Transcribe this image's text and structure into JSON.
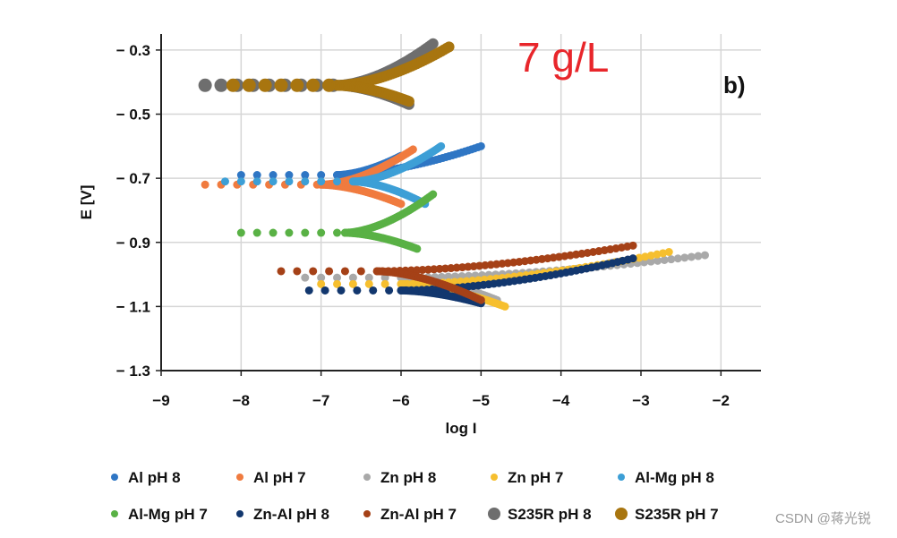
{
  "chart_data": {
    "type": "scatter",
    "title": "",
    "annotation": "7 g/L",
    "panel_label": "b)",
    "xlabel": "log I",
    "ylabel": "E [V]",
    "xlim": [
      -9,
      -1.5
    ],
    "ylim": [
      -1.3,
      -0.25
    ],
    "x_ticks": [
      -9,
      -8,
      -7,
      -6,
      -5,
      -4,
      -3,
      -2
    ],
    "x_tick_labels": [
      "−9",
      "−8",
      "−7",
      "−6",
      "−5",
      "−4",
      "−3",
      "−2"
    ],
    "y_ticks": [
      -0.3,
      -0.5,
      -0.7,
      -0.9,
      -1.1,
      -1.3
    ],
    "y_tick_labels": [
      "− 0.3",
      "− 0.5",
      "− 0.7",
      "− 0.9",
      "− 1.1",
      "− 1.3"
    ],
    "grid": true,
    "legend_position": "bottom",
    "series": [
      {
        "name": "Al pH 8",
        "color": "#2f76c4",
        "corrosion": {
          "x": -8.0,
          "y": -0.69
        },
        "anodic": {
          "x": -5.0,
          "y": -0.6
        },
        "cathodic": {
          "x": -6.0,
          "y": -0.63
        },
        "wing_tip": -6.8
      },
      {
        "name": "Al pH 7",
        "color": "#f07b3f",
        "corrosion": {
          "x": -8.45,
          "y": -0.72
        },
        "anodic": {
          "x": -5.85,
          "y": -0.61
        },
        "cathodic": {
          "x": -6.0,
          "y": -0.78
        },
        "wing_tip": -7.0
      },
      {
        "name": "Zn pH 8",
        "color": "#a9a9a9",
        "corrosion": {
          "x": -7.2,
          "y": -1.01
        },
        "anodic": {
          "x": -2.2,
          "y": -0.94
        },
        "cathodic": {
          "x": -4.8,
          "y": -1.08
        },
        "wing_tip": -6.0
      },
      {
        "name": "Zn pH 7",
        "color": "#f6bf2f",
        "corrosion": {
          "x": -7.0,
          "y": -1.03
        },
        "anodic": {
          "x": -2.65,
          "y": -0.93
        },
        "cathodic": {
          "x": -4.7,
          "y": -1.1
        },
        "wing_tip": -6.0
      },
      {
        "name": "Al-Mg pH 8",
        "color": "#3d9fd6",
        "corrosion": {
          "x": -8.2,
          "y": -0.71
        },
        "anodic": {
          "x": -5.5,
          "y": -0.6
        },
        "cathodic": {
          "x": -5.7,
          "y": -0.78
        },
        "wing_tip": -6.6
      },
      {
        "name": "Al-Mg pH 7",
        "color": "#59b145",
        "corrosion": {
          "x": -8.0,
          "y": -0.87
        },
        "anodic": {
          "x": -5.6,
          "y": -0.75
        },
        "cathodic": {
          "x": -5.8,
          "y": -0.92
        },
        "wing_tip": -6.7
      },
      {
        "name": "Zn-Al pH 8",
        "color": "#12376e",
        "corrosion": {
          "x": -7.15,
          "y": -1.05
        },
        "anodic": {
          "x": -3.1,
          "y": -0.95
        },
        "cathodic": {
          "x": -5.0,
          "y": -1.09
        },
        "wing_tip": -6.0
      },
      {
        "name": "Zn-Al pH 7",
        "color": "#a54117",
        "corrosion": {
          "x": -7.5,
          "y": -0.99
        },
        "anodic": {
          "x": -3.1,
          "y": -0.91
        },
        "cathodic": {
          "x": -5.0,
          "y": -1.08
        },
        "wing_tip": -6.3
      },
      {
        "name": "S235R pH 8",
        "color": "#6e6e6e",
        "corrosion": {
          "x": -8.45,
          "y": -0.41
        },
        "anodic": {
          "x": -5.6,
          "y": -0.28
        },
        "cathodic": {
          "x": -5.9,
          "y": -0.47
        },
        "wing_tip": -6.8
      },
      {
        "name": "S235R pH 7",
        "color": "#a8750f",
        "corrosion": {
          "x": -8.1,
          "y": -0.41
        },
        "anodic": {
          "x": -5.4,
          "y": -0.29
        },
        "cathodic": {
          "x": -5.9,
          "y": -0.46
        },
        "wing_tip": -6.8
      }
    ]
  },
  "watermark": "CSDN @蒋光锐"
}
